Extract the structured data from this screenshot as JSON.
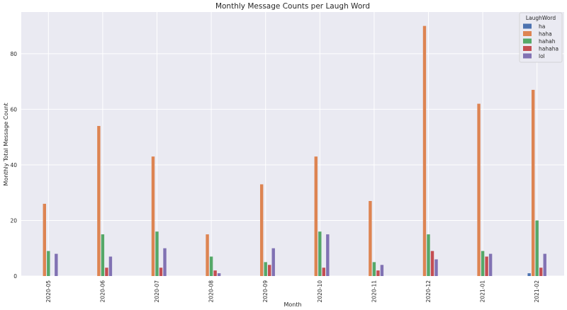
{
  "chart_data": {
    "type": "bar",
    "title": "Monthly Message Counts per Laugh Word",
    "xlabel": "Month",
    "ylabel": "Monthly Total Message Count",
    "ylim": [
      0,
      95
    ],
    "yticks": [
      0,
      20,
      40,
      60,
      80
    ],
    "grid": true,
    "legend": {
      "title": "LaughWord",
      "placement": "top-right"
    },
    "categories": [
      "2020-05",
      "2020-06",
      "2020-07",
      "2020-08",
      "2020-09",
      "2020-10",
      "2020-11",
      "2020-12",
      "2021-01",
      "2021-02"
    ],
    "series": [
      {
        "name": "ha",
        "color": "#4c72b0",
        "values": [
          0,
          0,
          0,
          0,
          0,
          0,
          0,
          0,
          0,
          1
        ]
      },
      {
        "name": "haha",
        "color": "#dd8452",
        "values": [
          26,
          54,
          43,
          15,
          33,
          43,
          27,
          90,
          62,
          67
        ]
      },
      {
        "name": "hahah",
        "color": "#55a868",
        "values": [
          9,
          15,
          16,
          7,
          5,
          16,
          5,
          15,
          9,
          20
        ]
      },
      {
        "name": "hahaha",
        "color": "#c44e52",
        "values": [
          0,
          3,
          3,
          2,
          4,
          3,
          2,
          9,
          7,
          3
        ]
      },
      {
        "name": "lol",
        "color": "#8172b3",
        "values": [
          8,
          7,
          10,
          1,
          10,
          15,
          4,
          6,
          8,
          8
        ]
      }
    ]
  }
}
